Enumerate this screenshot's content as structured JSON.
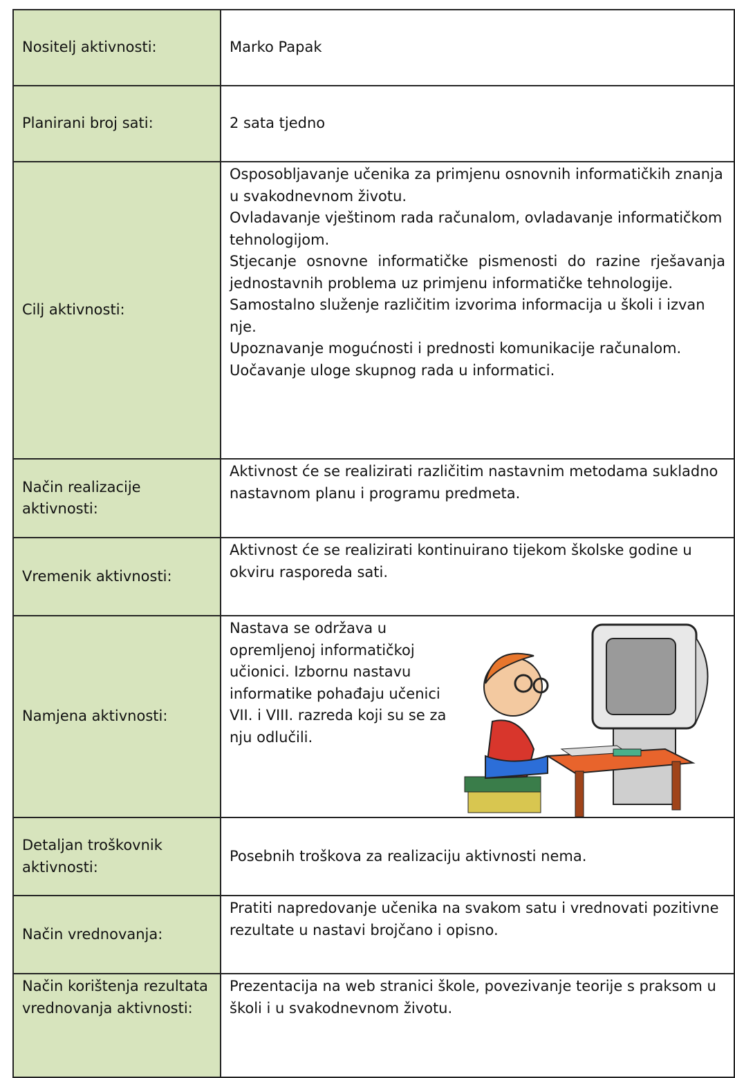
{
  "table": {
    "rows": [
      [
        "Nositelj aktivnosti:",
        "Marko Papak"
      ],
      [
        "Planirani broj sati:",
        "2 sata tjedno"
      ],
      [
        "Cilj aktivnosti:",
        [
          "Osposobljavanje učenika za primjenu osnovnih informatičkih znanja u svakodnevnom životu.",
          "Ovladavanje vještinom rada računalom, ovladavanje informatičkom tehnologijom.",
          "Stjecanje osnovne informatičke pismenosti do razine rješavanja jednostavnih problema uz primjenu informatičke tehnologije.",
          "Samostalno služenje različitim izvorima informacija u školi i izvan nje.",
          "Upoznavanje mogućnosti i prednosti komunikacije računalom.",
          "Uočavanje uloge skupnog rada u informatici."
        ]
      ],
      [
        "Način realizacije aktivnosti:",
        "Aktivnost će se realizirati različitim nastavnim metodama sukladno nastavnom planu i programu predmeta."
      ],
      [
        "Vremenik aktivnosti:",
        "Aktivnost će se realizirati kontinuirano tijekom školske godine u okviru rasporeda sati."
      ],
      [
        "Namjena aktivnosti:",
        "Nastava se održava u opremljenoj informatičkoj učionici. Izbornu nastavu informatike pohađaju učenici VII. i  VIII. razreda koji su se za nju odlučili."
      ],
      [
        "Detaljan troškovnik aktivnosti:",
        "Posebnih troškova za realizaciju aktivnosti nema."
      ],
      [
        "Način vrednovanja:",
        "Pratiti napredovanje učenika na svakom satu i vrednovati pozitivne rezultate u nastavi brojčano i opisno."
      ],
      [
        "Način korištenja rezultata vrednovanja aktivnosti:",
        "Prezentacija na web stranici škole, povezivanje teorije s praksom u školi i u svakodnevnom životu."
      ]
    ]
  }
}
